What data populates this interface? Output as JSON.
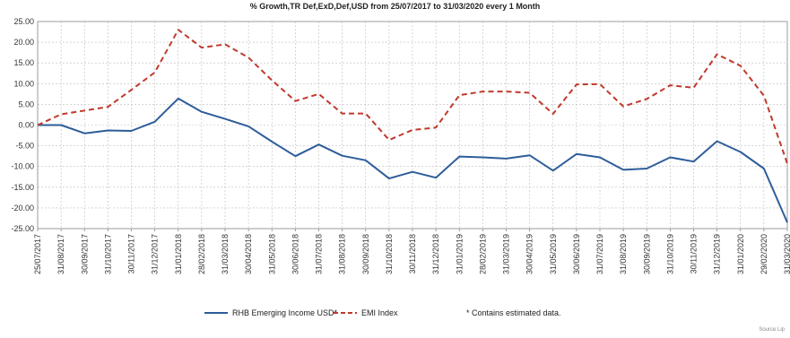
{
  "chart_data": {
    "type": "line",
    "title": "% Growth,TR Def,ExD,Def,USD from 25/07/2017 to 31/03/2020 every 1 Month",
    "xlabel": "",
    "ylabel": "",
    "categories": [
      "25/07/2017",
      "31/08/2017",
      "30/09/2017",
      "31/10/2017",
      "30/11/2017",
      "31/12/2017",
      "31/01/2018",
      "28/02/2018",
      "31/03/2018",
      "30/04/2018",
      "31/05/2018",
      "30/06/2018",
      "31/07/2018",
      "31/08/2018",
      "30/09/2018",
      "31/10/2018",
      "30/11/2018",
      "31/12/2018",
      "31/01/2019",
      "28/02/2019",
      "31/03/2019",
      "30/04/2019",
      "31/05/2019",
      "30/06/2019",
      "31/07/2019",
      "31/08/2019",
      "30/09/2019",
      "31/10/2019",
      "30/11/2019",
      "31/12/2019",
      "31/01/2020",
      "29/02/2020",
      "31/03/2020"
    ],
    "ylim": [
      -25,
      25
    ],
    "yticks": [
      "25.00",
      "20.00",
      "15.00",
      "10.00",
      "5.00",
      "0.00",
      "-5.00",
      "-10.00",
      "-15.00",
      "-20.00",
      "-25.00"
    ],
    "ytick_values": [
      25,
      20,
      15,
      10,
      5,
      0,
      -5,
      -10,
      -15,
      -20,
      -25
    ],
    "grid": true,
    "legend_position": "bottom",
    "series": [
      {
        "name": "RHB Emerging Income USD*",
        "color": "#2e5d9a",
        "style": "solid",
        "values": [
          0.0,
          0.0,
          -2.0,
          -1.3,
          -1.4,
          0.8,
          6.4,
          3.2,
          1.5,
          -0.3,
          -4.0,
          -7.5,
          -4.7,
          -7.4,
          -8.5,
          -12.9,
          -11.3,
          -12.7,
          -7.6,
          -7.8,
          -8.1,
          -7.3,
          -11.0,
          -7.0,
          -7.8,
          -10.8,
          -10.5,
          -7.8,
          -8.8,
          -3.9,
          -6.5,
          -10.5,
          -23.5
        ]
      },
      {
        "name": "EMI Index",
        "color": "#c0392b",
        "style": "dashed",
        "values": [
          0.0,
          2.6,
          3.5,
          4.4,
          8.5,
          12.7,
          23.0,
          18.7,
          19.5,
          16.3,
          10.8,
          5.8,
          7.5,
          2.8,
          2.8,
          -3.6,
          -1.2,
          -0.6,
          7.2,
          8.1,
          8.1,
          7.8,
          2.7,
          9.8,
          9.9,
          4.5,
          6.3,
          9.6,
          9.0,
          17.1,
          14.3,
          7.1,
          -9.3
        ]
      }
    ],
    "footnote": "*   Contains estimated data."
  },
  "source": "Source Lip"
}
